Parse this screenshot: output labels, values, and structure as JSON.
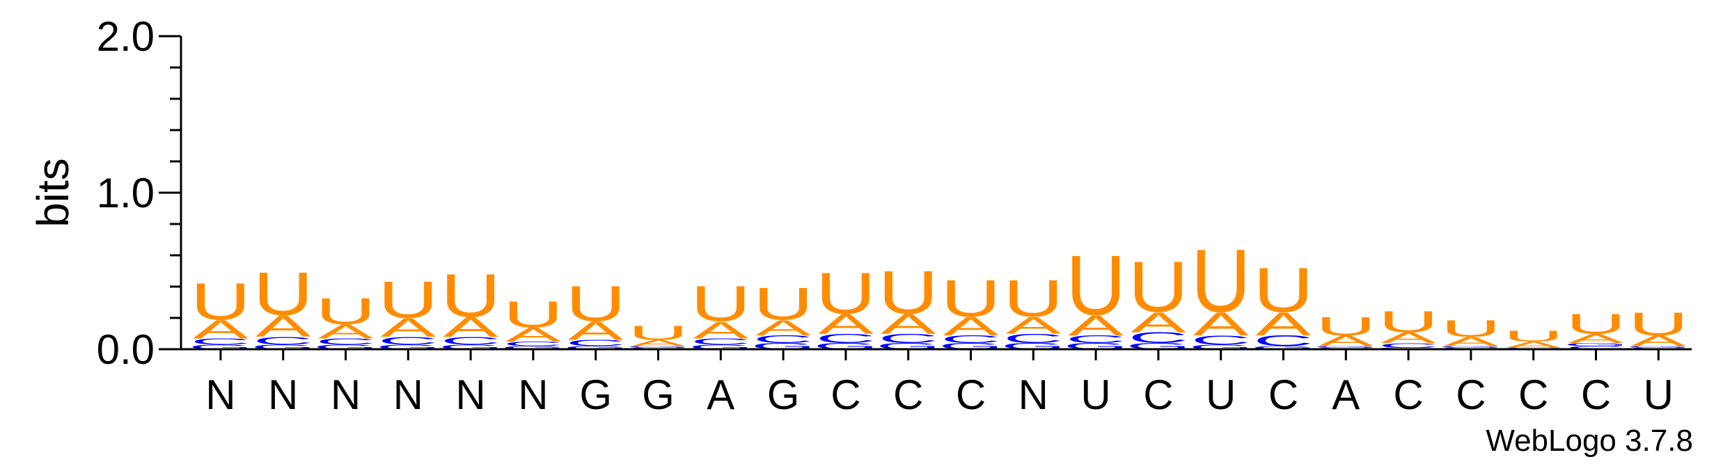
{
  "chart_data": {
    "type": "sequence-logo",
    "ylabel": "bits",
    "ylim": [
      0,
      2.0
    ],
    "y_ticks": [
      "2.0",
      "1.0",
      "0.0"
    ],
    "y_tick_values": [
      2.0,
      1.0,
      0.0
    ],
    "consensus": [
      "N",
      "N",
      "N",
      "N",
      "N",
      "N",
      "G",
      "G",
      "A",
      "G",
      "C",
      "C",
      "C",
      "N",
      "U",
      "C",
      "U",
      "C",
      "A",
      "C",
      "C",
      "C",
      "C",
      "U"
    ],
    "colors": {
      "U": "#ff8c00",
      "A": "#ff8c00",
      "C": "#0000ff",
      "G": "#0000ff"
    },
    "positions": [
      {
        "U": 0.24,
        "A": 0.12,
        "C": 0.04,
        "G": 0.03
      },
      {
        "U": 0.28,
        "A": 0.14,
        "C": 0.05,
        "G": 0.03
      },
      {
        "U": 0.17,
        "A": 0.09,
        "C": 0.04,
        "G": 0.03
      },
      {
        "U": 0.24,
        "A": 0.12,
        "C": 0.05,
        "G": 0.03
      },
      {
        "U": 0.28,
        "A": 0.13,
        "C": 0.05,
        "G": 0.03
      },
      {
        "U": 0.17,
        "A": 0.09,
        "C": 0.03,
        "G": 0.02
      },
      {
        "U": 0.23,
        "A": 0.12,
        "C": 0.04,
        "G": 0.02
      },
      {
        "U": 0.09,
        "A": 0.04,
        "C": 0.01,
        "G": 0.01
      },
      {
        "U": 0.23,
        "A": 0.11,
        "C": 0.04,
        "G": 0.03
      },
      {
        "U": 0.21,
        "A": 0.1,
        "C": 0.05,
        "G": 0.04
      },
      {
        "U": 0.27,
        "A": 0.13,
        "C": 0.06,
        "G": 0.04
      },
      {
        "U": 0.28,
        "A": 0.13,
        "C": 0.06,
        "G": 0.04
      },
      {
        "U": 0.24,
        "A": 0.12,
        "C": 0.05,
        "G": 0.04
      },
      {
        "U": 0.24,
        "A": 0.11,
        "C": 0.06,
        "G": 0.04
      },
      {
        "U": 0.39,
        "A": 0.13,
        "C": 0.05,
        "G": 0.04
      },
      {
        "U": 0.33,
        "A": 0.13,
        "C": 0.07,
        "G": 0.04
      },
      {
        "U": 0.41,
        "A": 0.15,
        "C": 0.06,
        "G": 0.03
      },
      {
        "U": 0.29,
        "A": 0.15,
        "C": 0.07,
        "G": 0.02
      },
      {
        "U": 0.12,
        "A": 0.07,
        "C": 0.01,
        "G": 0.01
      },
      {
        "U": 0.14,
        "A": 0.07,
        "C": 0.03,
        "G": 0.01
      },
      {
        "U": 0.11,
        "A": 0.06,
        "C": 0.01,
        "G": 0.01
      },
      {
        "U": 0.07,
        "A": 0.04,
        "C": 0.01,
        "G": 0.0
      },
      {
        "U": 0.13,
        "A": 0.06,
        "C": 0.02,
        "G": 0.02
      },
      {
        "U": 0.15,
        "A": 0.07,
        "C": 0.01,
        "G": 0.01
      }
    ],
    "footer": "WebLogo 3.7.8"
  }
}
